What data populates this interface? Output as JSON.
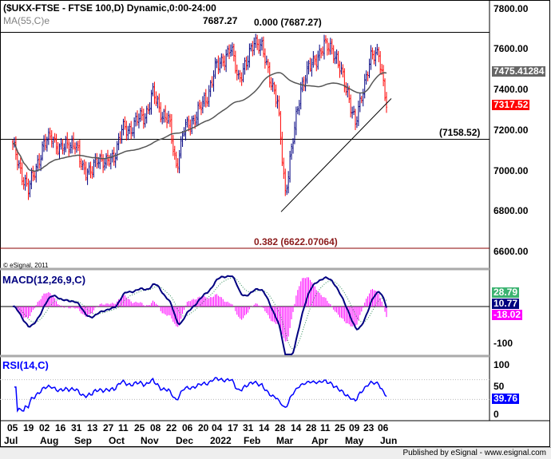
{
  "header": {
    "title": "($UKX-FTSE - FTSE 100,D) Dynamic,0:00-24:00",
    "ma_label": "MA(55,C)e",
    "copyright": "© eSignal, 2011"
  },
  "fib": {
    "high_label": "7687.27",
    "level0": "0.000 (7687.27)",
    "level_mid": "(7158.52)",
    "level382": "0.382 (6622.07064)"
  },
  "price_axis": [
    "7800.00",
    "7600.00",
    "7400.00",
    "7200.00",
    "7000.00",
    "6800.00",
    "6600.00"
  ],
  "price_tags": {
    "ma": "7475.41284",
    "last": "7317.52"
  },
  "macd": {
    "label": "MACD(12,26,9,C)",
    "signal_tag": "28.79",
    "macd_tag": "10.77",
    "hist_tag": "-18.02",
    "axis": [
      "-100"
    ]
  },
  "rsi": {
    "label": "RSI(14,C)",
    "axis": [
      "100",
      "50",
      "0"
    ],
    "tag": "39.76"
  },
  "dates": {
    "days": [
      "05",
      "19",
      "02",
      "16",
      "31",
      "13",
      "27",
      "11",
      "25",
      "08",
      "22",
      "06",
      "20",
      "04",
      "17",
      "31",
      "14",
      "28",
      "14",
      "28",
      "11",
      "25",
      "09",
      "23",
      "06"
    ],
    "months": [
      "Jul",
      "Aug",
      "Sep",
      "Oct",
      "Nov",
      "Dec",
      "2022",
      "Feb",
      "Mar",
      "Apr",
      "May",
      "Jun"
    ]
  },
  "footer": "Published by eSignal - www.esignal.com",
  "colors": {
    "up": "#000080",
    "down": "#ff0000",
    "ma": "#555555",
    "macd": "#000080",
    "signal": "#2e8b57",
    "hist": "#ff00ff",
    "rsi": "#0000ff",
    "fib382": "#8b0000"
  },
  "chart_data": {
    "type": "line",
    "title": "($UKX-FTSE - FTSE 100,D) Dynamic,0:00-24:00",
    "ylim": [
      6560,
      7820
    ],
    "weekly_dates": [
      "2021-07-05",
      "2021-07-12",
      "2021-07-19",
      "2021-07-26",
      "2021-08-02",
      "2021-08-09",
      "2021-08-16",
      "2021-08-23",
      "2021-08-31",
      "2021-09-06",
      "2021-09-13",
      "2021-09-20",
      "2021-09-27",
      "2021-10-04",
      "2021-10-11",
      "2021-10-18",
      "2021-10-25",
      "2021-11-01",
      "2021-11-08",
      "2021-11-15",
      "2021-11-22",
      "2021-11-29",
      "2021-12-06",
      "2021-12-13",
      "2021-12-20",
      "2021-12-27",
      "2022-01-04",
      "2022-01-10",
      "2022-01-17",
      "2022-01-24",
      "2022-01-31",
      "2022-02-07",
      "2022-02-14",
      "2022-02-21",
      "2022-02-28",
      "2022-03-07",
      "2022-03-14",
      "2022-03-21",
      "2022-03-28",
      "2022-04-04",
      "2022-04-11",
      "2022-04-18",
      "2022-04-25",
      "2022-05-02",
      "2022-05-09",
      "2022-05-16",
      "2022-05-23",
      "2022-05-30",
      "2022-06-06"
    ],
    "weekly_close": [
      7120,
      7010,
      6900,
      7030,
      7120,
      7190,
      7090,
      7150,
      7120,
      7030,
      6980,
      7080,
      7030,
      7080,
      7200,
      7210,
      7250,
      7280,
      7380,
      7300,
      7250,
      7030,
      7200,
      7250,
      7300,
      7380,
      7500,
      7560,
      7600,
      7470,
      7520,
      7660,
      7600,
      7480,
      7330,
      6900,
      7150,
      7420,
      7500,
      7570,
      7610,
      7620,
      7500,
      7400,
      7220,
      7420,
      7550,
      7600,
      7317.52
    ],
    "horizontal_levels": [
      7687.27,
      7158.52,
      6622.07064
    ],
    "trendline": [
      {
        "date": "2022-03-07",
        "value": 6800
      },
      {
        "date": "2022-06-08",
        "value": 7360
      }
    ],
    "ma55_last": 7475.41284
  }
}
